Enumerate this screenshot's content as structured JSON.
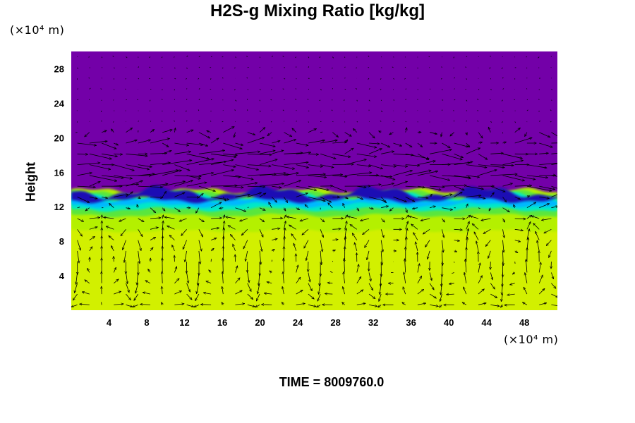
{
  "chart_data": {
    "type": "heatmap",
    "title": "H2S-g Mixing Ratio [kg/kg]",
    "ylabel": "Height",
    "xunit": "(×10⁴ m)",
    "yunit": "(×10⁴ m)",
    "xlim": [
      0,
      51.5
    ],
    "ylim": [
      0,
      30
    ],
    "xticks": [
      4,
      8,
      12,
      16,
      20,
      24,
      28,
      32,
      36,
      40,
      44,
      48
    ],
    "yticks": [
      4,
      8,
      12,
      16,
      20,
      24,
      28
    ],
    "grid": false,
    "regions": [
      {
        "name": "upper",
        "from": 12.5,
        "to": 30,
        "color": "#7300a8"
      },
      {
        "name": "lower",
        "from": 0,
        "to": 12,
        "color": "#d2f000"
      }
    ],
    "interface_height": 12.2,
    "interface_colors": [
      "#1a0fb4",
      "#00b8ff",
      "#00e8c8",
      "#5ae63c",
      "#b4f000"
    ],
    "vector_field": "wind vectors (black arrows)"
  },
  "time_label": "TIME = 8009760.0"
}
